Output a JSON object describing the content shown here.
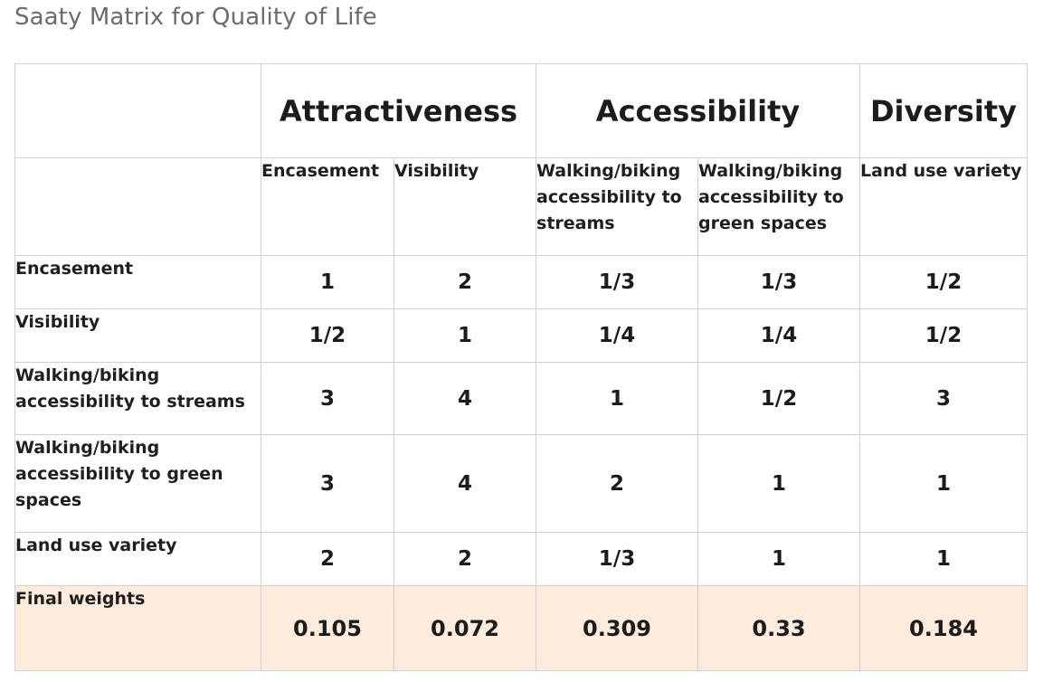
{
  "title": "Saaty Matrix for Quality of Life",
  "groups": [
    "Attractiveness",
    "Accessibility",
    "Diversity"
  ],
  "criteria": [
    "Encasement",
    "Visibility",
    "Walking/biking accessibility to streams",
    "Walking/biking accessibility to green spaces",
    "Land use variety"
  ],
  "rows": [
    {
      "label": "Encasement",
      "values": [
        "1",
        "2",
        "1/3",
        "1/3",
        "1/2"
      ]
    },
    {
      "label": "Visibility",
      "values": [
        "1/2",
        "1",
        "1/4",
        "1/4",
        "1/2"
      ]
    },
    {
      "label": "Walking/biking accessibility to streams",
      "values": [
        "3",
        "4",
        "1",
        "1/2",
        "3"
      ]
    },
    {
      "label": "Walking/biking accessibility to green spaces",
      "values": [
        "3",
        "4",
        "2",
        "1",
        "1"
      ]
    },
    {
      "label": "Land use variety",
      "values": [
        "2",
        "2",
        "1/3",
        "1",
        "1"
      ]
    }
  ],
  "final_weights": {
    "label": "Final weights",
    "values": [
      "0.105",
      "0.072",
      "0.309",
      "0.33",
      "0.184"
    ]
  },
  "colors": {
    "weights_background": "#fdebdc",
    "border": "#cfcfcf",
    "title": "#6b6b6b"
  }
}
